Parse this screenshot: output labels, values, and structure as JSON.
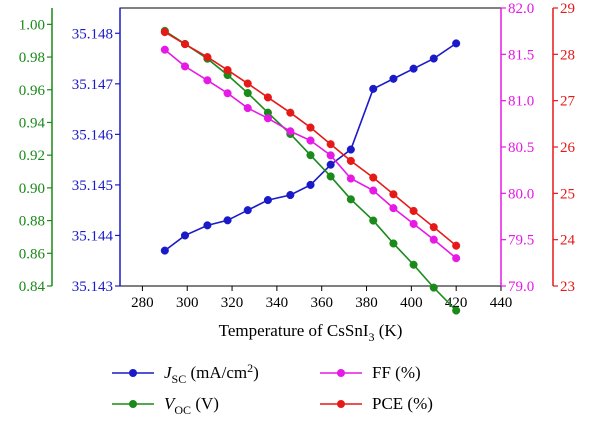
{
  "chart_data": {
    "type": "line",
    "xlabel": {
      "main": "Temperature of CsSnI",
      "sub": "3",
      "tail": " (K)"
    },
    "xlim": [
      270,
      440
    ],
    "x_ticks": [
      "280",
      "300",
      "320",
      "340",
      "360",
      "380",
      "400",
      "420",
      "440"
    ],
    "x": [
      290,
      299,
      309,
      318,
      327,
      336,
      346,
      355,
      364,
      373,
      383,
      392,
      401,
      410,
      420
    ],
    "axes": {
      "voc": {
        "ylim": [
          0.84,
          1.01
        ],
        "ticks": [
          "0.84",
          "0.86",
          "0.88",
          "0.90",
          "0.92",
          "0.94",
          "0.96",
          "0.98",
          "1.00"
        ],
        "color": "#1a8a1a"
      },
      "jsc": {
        "ylim": [
          35.143,
          35.1485
        ],
        "ticks": [
          "35.143",
          "35.144",
          "35.145",
          "35.146",
          "35.147",
          "35.148"
        ],
        "color": "#1a1ac8"
      },
      "ff": {
        "ylim": [
          79.0,
          82.0
        ],
        "ticks": [
          "79.0",
          "79.5",
          "80.0",
          "80.5",
          "81.0",
          "81.5",
          "82.0"
        ],
        "color": "#e619e6"
      },
      "pce": {
        "ylim": [
          23,
          29
        ],
        "ticks": [
          "23",
          "24",
          "25",
          "26",
          "27",
          "28",
          "29"
        ],
        "color": "#e61919"
      }
    },
    "series": [
      {
        "key": "jsc",
        "color": "#1a1ac8",
        "legend": {
          "symbol": "J",
          "sub": "SC",
          "text": " (mA/cm",
          "sup": "2",
          "tail": ")"
        },
        "values": [
          35.1437,
          35.144,
          35.1442,
          35.1443,
          35.1445,
          35.1447,
          35.1448,
          35.145,
          35.1454,
          35.1457,
          35.1469,
          35.1471,
          35.1473,
          35.1475,
          35.1478
        ]
      },
      {
        "key": "voc",
        "color": "#1a8a1a",
        "legend": {
          "symbol": "V",
          "sub": "OC",
          "text": " (V)",
          "sup": "",
          "tail": ""
        },
        "values": [
          0.996,
          0.988,
          0.979,
          0.969,
          0.958,
          0.946,
          0.933,
          0.92,
          0.907,
          0.893,
          0.88,
          0.866,
          0.853,
          0.839,
          0.825
        ]
      },
      {
        "key": "ff",
        "color": "#e619e6",
        "legend": {
          "symbol": "",
          "sub": "",
          "text": "FF (%)",
          "sup": "",
          "tail": ""
        },
        "values": [
          81.55,
          81.37,
          81.22,
          81.08,
          80.92,
          80.81,
          80.67,
          80.57,
          80.41,
          80.16,
          80.03,
          79.84,
          79.67,
          79.5,
          79.3
        ]
      },
      {
        "key": "pce",
        "color": "#e61919",
        "legend": {
          "symbol": "",
          "sub": "",
          "text": "PCE (%)",
          "sup": "",
          "tail": ""
        },
        "values": [
          28.48,
          28.22,
          27.94,
          27.66,
          27.37,
          27.07,
          26.74,
          26.42,
          26.06,
          25.7,
          25.34,
          24.98,
          24.62,
          24.27,
          23.87
        ]
      }
    ],
    "legend_position": "bottom"
  }
}
